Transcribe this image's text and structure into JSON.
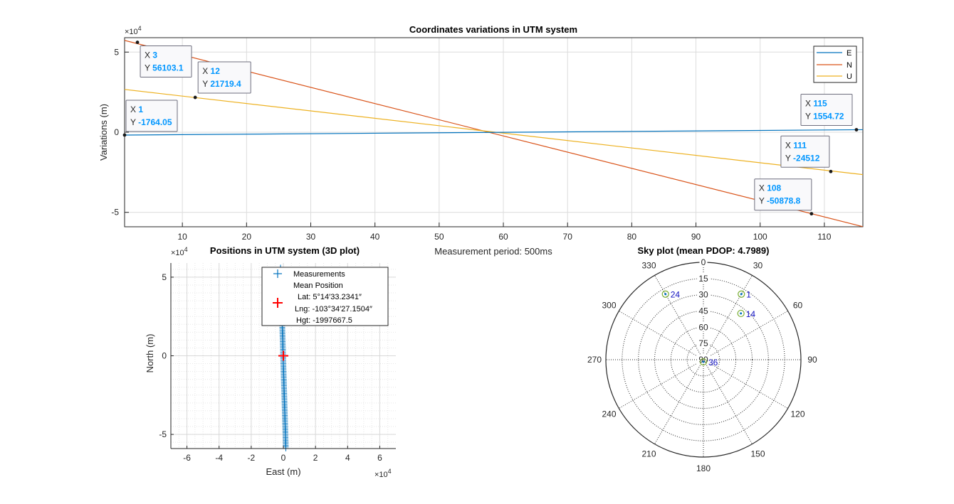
{
  "colors": {
    "E": "#0072BD",
    "N": "#D95319",
    "U": "#EDB120",
    "measurement": "#0072BD",
    "mean_marker": "#FF0000",
    "datatip_value": "#0096FF",
    "sky_label": "#1010C0",
    "grid": "#DCDCDC"
  },
  "chart_data": [
    {
      "type": "line",
      "title": "Coordinates variations in UTM system",
      "xlabel": "Measurement period: 500ms",
      "ylabel": "Variations (m)",
      "y_exponent": "×10",
      "y_exponent_power": "4",
      "xlim": [
        1,
        116
      ],
      "ylim": [
        -59000,
        59000
      ],
      "x_ticks": [
        10,
        20,
        30,
        40,
        50,
        60,
        70,
        80,
        90,
        100,
        110
      ],
      "y_ticks": [
        -50000,
        0,
        50000
      ],
      "y_tick_labels": [
        "-5",
        "0",
        "5"
      ],
      "grid": true,
      "legend_position": "top-right",
      "series": [
        {
          "name": "E",
          "x": [
            1,
            116
          ],
          "y": [
            -1764.05,
            1570.0
          ]
        },
        {
          "name": "N",
          "x": [
            1,
            116
          ],
          "y": [
            57300.0,
            -58930.0
          ]
        },
        {
          "name": "U",
          "x": [
            1,
            116
          ],
          "y": [
            26700.0,
            -26450.0
          ]
        }
      ],
      "datatips": [
        {
          "x_label": "X",
          "x": "3",
          "y_label": "Y",
          "y": "56103.1",
          "series": "N"
        },
        {
          "x_label": "X",
          "x": "12",
          "y_label": "Y",
          "y": "21719.4",
          "series": "U"
        },
        {
          "x_label": "X",
          "x": "1",
          "y_label": "Y",
          "y": "-1764.05",
          "series": "E"
        },
        {
          "x_label": "X",
          "x": "115",
          "y_label": "Y",
          "y": "1554.72",
          "series": "E"
        },
        {
          "x_label": "X",
          "x": "111",
          "y_label": "Y",
          "y": "-24512",
          "series": "U"
        },
        {
          "x_label": "X",
          "x": "108",
          "y_label": "Y",
          "y": "-50878.8",
          "series": "N"
        }
      ]
    },
    {
      "type": "scatter",
      "title": "Positions in UTM system (3D plot)",
      "xlabel": "East (m)",
      "ylabel": "North (m)",
      "x_exponent": "×10",
      "x_exponent_power": "4",
      "y_exponent": "×10",
      "y_exponent_power": "4",
      "xlim": [
        -70000,
        70000
      ],
      "ylim": [
        -59000,
        59000
      ],
      "x_ticks": [
        -60000,
        -40000,
        -20000,
        0,
        20000,
        40000,
        60000
      ],
      "x_tick_labels": [
        "-6",
        "-4",
        "-2",
        "0",
        "2",
        "4",
        "6"
      ],
      "y_ticks": [
        -50000,
        0,
        50000
      ],
      "y_tick_labels": [
        "-5",
        "0",
        "5"
      ],
      "grid": true,
      "legend_position": "top-right",
      "measurements": {
        "name": "Measurements",
        "east_start": -1764.05,
        "east_end": 1554.72,
        "north_start": 56103.1,
        "north_end": -58930.0,
        "count": 116
      },
      "mean_position": {
        "name": "Mean Position",
        "east": 0,
        "north": 0
      },
      "legend_lines": [
        "Lat: 5°14′33.2341″",
        "Lng: -103°34′27.1504″",
        "Hgt: -1997667.5"
      ]
    },
    {
      "type": "scatter",
      "title": "Sky plot (mean PDOP: 4.7989)",
      "elevation_labels": [
        "0",
        "15",
        "30",
        "45",
        "60",
        "75",
        "90"
      ],
      "azimuth_labels": [
        "0",
        "30",
        "60",
        "90",
        "120",
        "150",
        "180",
        "210",
        "240",
        "270",
        "300",
        "330"
      ],
      "satellites": [
        {
          "prn": "1",
          "azimuth": 30,
          "elevation": 20
        },
        {
          "prn": "14",
          "azimuth": 39,
          "elevation": 35
        },
        {
          "prn": "24",
          "azimuth": 330,
          "elevation": 20
        },
        {
          "prn": "36",
          "azimuth": 180,
          "elevation": 88
        }
      ]
    }
  ]
}
